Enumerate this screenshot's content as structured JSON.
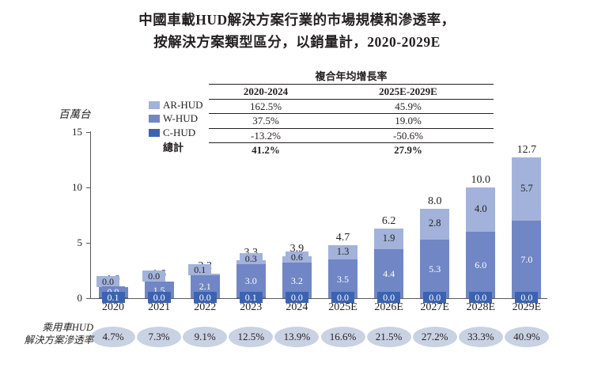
{
  "title": {
    "line1": "中國車載HUD解決方案行業的市場規模和滲透率，",
    "line2": "按解決方案類型區分，以銷量計，2020-2029E"
  },
  "cagr_table": {
    "header": "複合年均增長率",
    "columns": [
      "2020-2024",
      "2025E-2029E"
    ],
    "rows": [
      {
        "label": "AR-HUD",
        "swatch": "ar_hud",
        "values": [
          "162.5%",
          "45.9%"
        ],
        "bold": false
      },
      {
        "label": "W-HUD",
        "swatch": "w_hud",
        "values": [
          "37.5%",
          "19.0%"
        ],
        "bold": false
      },
      {
        "label": "C-HUD",
        "swatch": "c_hud",
        "values": [
          "-13.2%",
          "-50.6%"
        ],
        "bold": false
      },
      {
        "label": "總計",
        "swatch": null,
        "values": [
          "41.2%",
          "27.9%"
        ],
        "bold": true
      }
    ]
  },
  "chart_data": {
    "type": "bar",
    "stacked": true,
    "title": "中國車載HUD解決方案行業的市場規模和滲透率，按解決方案類型區分，以銷量計，2020-2029E",
    "ylabel": "百萬台",
    "ylim": [
      0,
      15
    ],
    "yticks": [
      0,
      5,
      10,
      15
    ],
    "grid": false,
    "legend_position": "top-left",
    "categories": [
      "2020",
      "2021",
      "2022",
      "2023",
      "2024",
      "2025E",
      "2026E",
      "2027E",
      "2028E",
      "2029E"
    ],
    "series": [
      {
        "name": "C-HUD",
        "color": "#3c63b0",
        "values": [
          0.1,
          0.0,
          0.0,
          0.1,
          0.0,
          0.0,
          0.0,
          0.0,
          0.0,
          0.0
        ]
      },
      {
        "name": "W-HUD",
        "color": "#7086c5",
        "values": [
          0.9,
          1.5,
          2.1,
          3.0,
          3.2,
          3.5,
          4.4,
          5.3,
          6.0,
          7.0
        ]
      },
      {
        "name": "AR-HUD",
        "color": "#a2b2da",
        "values": [
          0.0,
          0.0,
          0.1,
          0.3,
          0.6,
          1.3,
          1.9,
          2.8,
          4.0,
          5.7
        ]
      }
    ],
    "totals": [
      1.0,
      1.6,
      2.2,
      3.3,
      3.9,
      4.7,
      6.2,
      8.0,
      10.0,
      12.7
    ]
  },
  "penetration": {
    "label_line1": "乘用車HUD",
    "label_line2": "解決方案滲透率",
    "values": [
      "4.7%",
      "7.3%",
      "9.1%",
      "12.5%",
      "13.9%",
      "16.6%",
      "21.5%",
      "27.2%",
      "33.3%",
      "40.9%"
    ]
  },
  "colors": {
    "ar_hud": "#a2b2da",
    "w_hud": "#7086c5",
    "c_hud": "#3c63b0",
    "oval": "#c9d2e3",
    "axis": "#595959",
    "text": "#231f20"
  }
}
